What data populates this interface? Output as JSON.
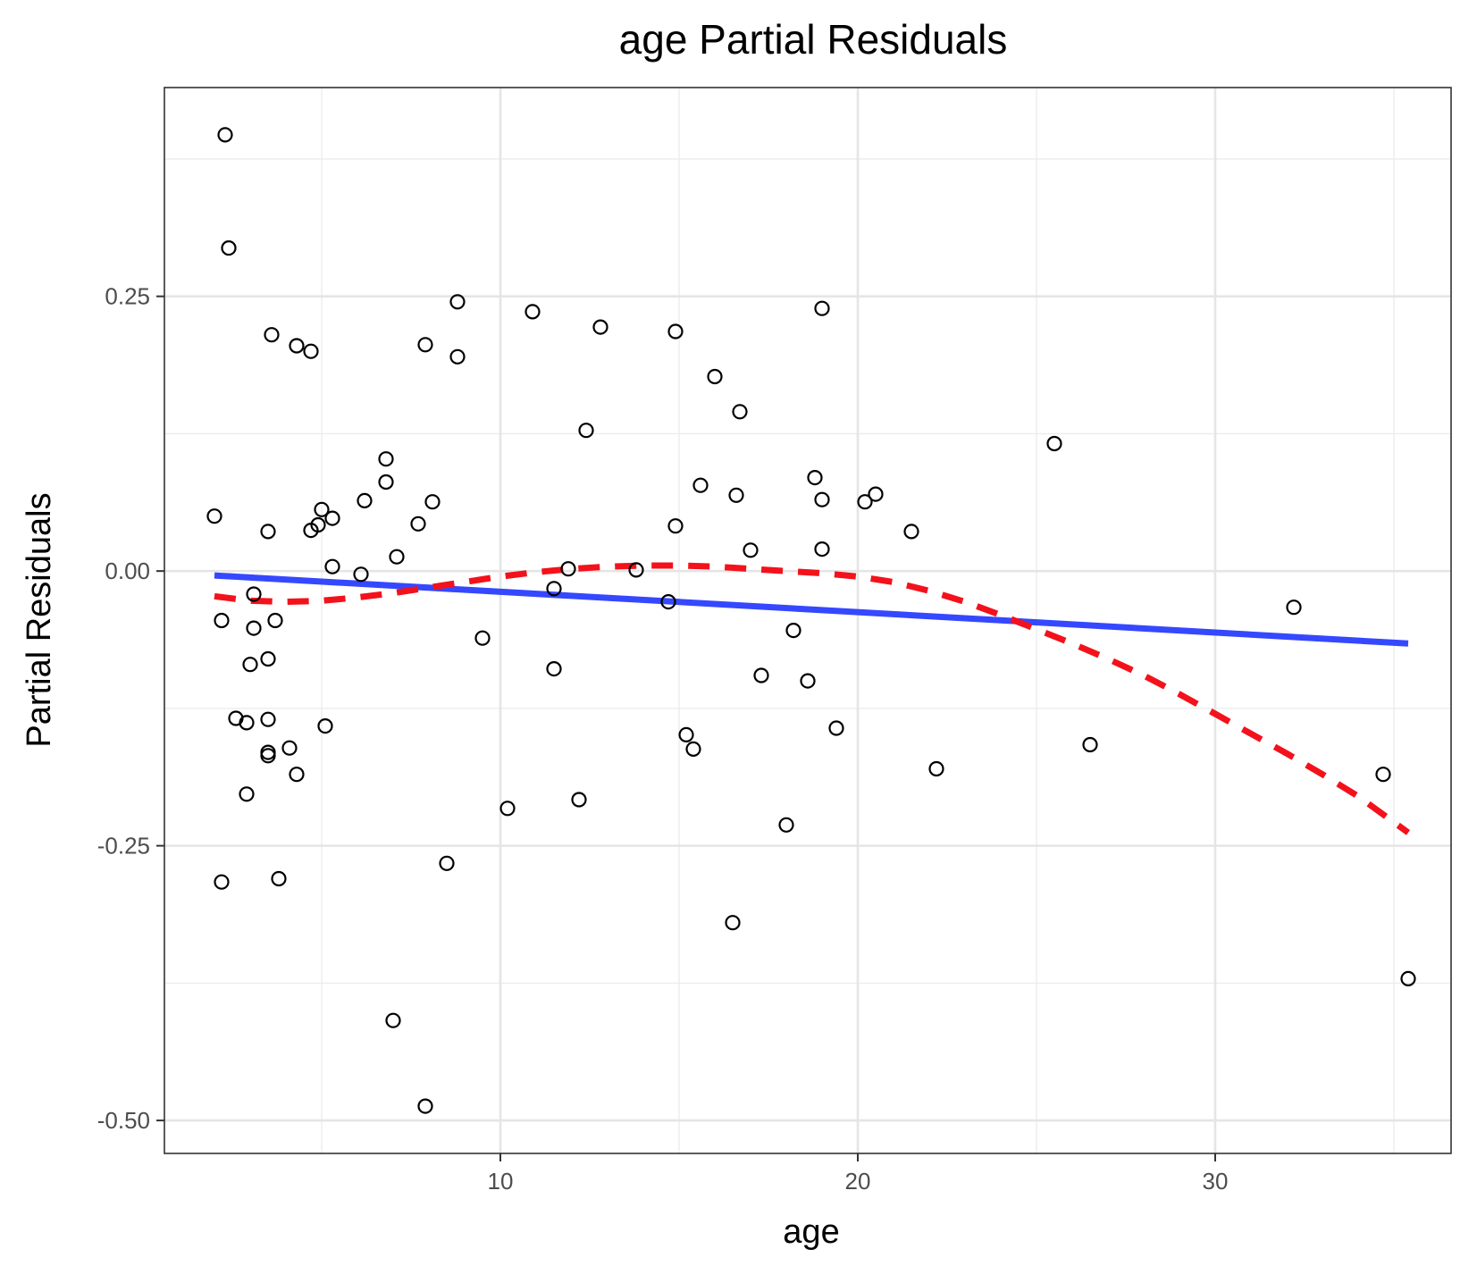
{
  "chart_data": {
    "type": "scatter",
    "title": "age Partial Residuals",
    "xlabel": "age",
    "ylabel": "Partial Residuals",
    "xlim": [
      0.6,
      36.6
    ],
    "ylim": [
      -0.53,
      0.44
    ],
    "x_ticks": [
      10,
      20,
      30
    ],
    "x_tick_labels": [
      "10",
      "20",
      "30"
    ],
    "y_ticks": [
      0.25,
      0.0,
      -0.25,
      -0.5
    ],
    "y_tick_labels": [
      "0.25",
      "0.00",
      "-0.25",
      "-0.50"
    ],
    "x_minor": [
      5,
      15,
      25,
      35
    ],
    "y_minor": [
      0.375,
      0.125,
      -0.125,
      -0.375
    ],
    "grid": true,
    "legend": "none",
    "colors": {
      "points": "#000000",
      "linear_fit": "#3548ff",
      "smooth_fit": "#f3121b"
    },
    "points": [
      [
        2.0,
        0.05
      ],
      [
        2.2,
        -0.045
      ],
      [
        2.2,
        -0.283
      ],
      [
        2.3,
        0.397
      ],
      [
        2.4,
        0.294
      ],
      [
        2.6,
        -0.134
      ],
      [
        2.9,
        -0.138
      ],
      [
        2.9,
        -0.203
      ],
      [
        3.0,
        -0.085
      ],
      [
        3.1,
        -0.052
      ],
      [
        3.1,
        -0.021
      ],
      [
        3.5,
        0.036
      ],
      [
        3.5,
        -0.08
      ],
      [
        3.5,
        -0.135
      ],
      [
        3.5,
        -0.165
      ],
      [
        3.5,
        -0.168
      ],
      [
        3.6,
        0.215
      ],
      [
        3.7,
        -0.045
      ],
      [
        3.8,
        -0.28
      ],
      [
        4.1,
        -0.161
      ],
      [
        4.3,
        0.205
      ],
      [
        4.3,
        -0.185
      ],
      [
        4.7,
        0.2
      ],
      [
        4.7,
        0.037
      ],
      [
        4.9,
        0.042
      ],
      [
        5.0,
        0.056
      ],
      [
        5.1,
        -0.141
      ],
      [
        5.3,
        0.048
      ],
      [
        5.3,
        0.004
      ],
      [
        6.1,
        -0.003
      ],
      [
        6.2,
        0.064
      ],
      [
        6.8,
        0.102
      ],
      [
        6.8,
        0.081
      ],
      [
        7.0,
        -0.409
      ],
      [
        7.1,
        0.013
      ],
      [
        7.7,
        0.043
      ],
      [
        7.9,
        0.206
      ],
      [
        7.9,
        -0.487
      ],
      [
        8.1,
        0.063
      ],
      [
        8.5,
        -0.266
      ],
      [
        8.8,
        0.245
      ],
      [
        8.8,
        0.195
      ],
      [
        9.5,
        -0.061
      ],
      [
        10.2,
        -0.216
      ],
      [
        10.9,
        0.236
      ],
      [
        11.5,
        -0.089
      ],
      [
        11.5,
        -0.016
      ],
      [
        11.9,
        0.002
      ],
      [
        12.2,
        -0.208
      ],
      [
        12.4,
        0.128
      ],
      [
        12.8,
        0.222
      ],
      [
        13.8,
        0.001
      ],
      [
        14.7,
        -0.028
      ],
      [
        14.9,
        0.218
      ],
      [
        14.9,
        0.041
      ],
      [
        15.2,
        -0.149
      ],
      [
        15.4,
        -0.162
      ],
      [
        15.6,
        0.078
      ],
      [
        16.0,
        0.177
      ],
      [
        16.5,
        -0.32
      ],
      [
        16.6,
        0.069
      ],
      [
        16.7,
        0.145
      ],
      [
        17.0,
        0.019
      ],
      [
        17.3,
        -0.095
      ],
      [
        18.0,
        -0.231
      ],
      [
        18.2,
        -0.054
      ],
      [
        18.6,
        -0.1
      ],
      [
        18.8,
        0.085
      ],
      [
        19.0,
        0.239
      ],
      [
        19.0,
        0.065
      ],
      [
        19.0,
        0.02
      ],
      [
        19.4,
        -0.143
      ],
      [
        20.2,
        0.063
      ],
      [
        20.5,
        0.07
      ],
      [
        21.5,
        0.036
      ],
      [
        22.2,
        -0.18
      ],
      [
        25.5,
        0.116
      ],
      [
        26.5,
        -0.158
      ],
      [
        32.2,
        -0.033
      ],
      [
        34.7,
        -0.185
      ],
      [
        35.4,
        -0.371
      ]
    ],
    "series": [
      {
        "kind": "linear-fit",
        "x": [
          2.0,
          35.4
        ],
        "values": [
          -0.004,
          -0.066
        ]
      },
      {
        "kind": "smooth-fit",
        "x": [
          2.0,
          3.0,
          4.0,
          5.0,
          6.0,
          7.0,
          8.0,
          9.0,
          10.0,
          11.0,
          12.0,
          13.0,
          14.0,
          15.0,
          16.0,
          17.0,
          18.0,
          19.0,
          20.0,
          21.0,
          22.0,
          23.0,
          24.0,
          25.0,
          26.0,
          27.0,
          28.0,
          29.0,
          30.0,
          31.0,
          32.0,
          33.0,
          34.0,
          35.4
        ],
        "values": [
          -0.023,
          -0.027,
          -0.028,
          -0.027,
          -0.024,
          -0.02,
          -0.015,
          -0.01,
          -0.005,
          -0.001,
          0.002,
          0.004,
          0.005,
          0.005,
          0.004,
          0.002,
          0.0,
          -0.002,
          -0.005,
          -0.01,
          -0.018,
          -0.028,
          -0.04,
          -0.053,
          -0.066,
          -0.08,
          -0.095,
          -0.112,
          -0.13,
          -0.148,
          -0.166,
          -0.185,
          -0.205,
          -0.238
        ]
      }
    ]
  }
}
